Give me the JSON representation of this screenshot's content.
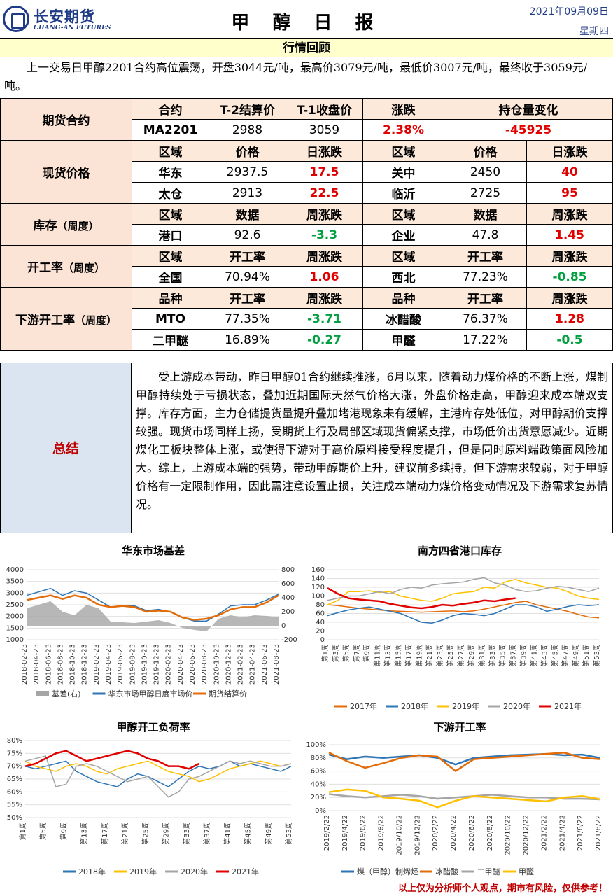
{
  "header": {
    "logo_cn": "长安期货",
    "logo_en": "CHANG-AN FUTURES",
    "title": "甲 醇 日 报",
    "date": "2021年09月09日",
    "weekday": "星期四"
  },
  "review": {
    "heading": "行情回顾",
    "text": "上一交易日甲醇2201合约高位震荡，开盘3044元/吨，最高价3079元/吨，最低价3007元/吨，最终收于3059元/吨。"
  },
  "futures": {
    "section": "期货合约",
    "headers": [
      "合约",
      "T-2结算价",
      "T-1收盘价",
      "涨跌",
      "持仓量变化"
    ],
    "row": [
      "MA2201",
      "2988",
      "3059",
      "2.38%",
      "-45925"
    ]
  },
  "spot": {
    "section": "现货价格",
    "headers": [
      "区域",
      "价格",
      "日涨跌",
      "区域",
      "价格",
      "日涨跌"
    ],
    "rows": [
      [
        "华东",
        "2937.5",
        "17.5",
        "关中",
        "2450",
        "40"
      ],
      [
        "太仓",
        "2913",
        "22.5",
        "临沂",
        "2725",
        "95"
      ]
    ]
  },
  "inventory": {
    "section": "库存",
    "section_note": "（周度）",
    "headers": [
      "区域",
      "数据",
      "周涨跌",
      "区域",
      "数据",
      "周涨跌"
    ],
    "row": [
      "港口",
      "92.6",
      "-3.3",
      "企业",
      "47.8",
      "1.45"
    ]
  },
  "operating": {
    "section": "开工率",
    "section_note": "（周度）",
    "headers": [
      "区域",
      "开工率",
      "周涨跌",
      "区域",
      "开工率",
      "周涨跌"
    ],
    "row": [
      "全国",
      "70.94%",
      "1.06",
      "西北",
      "77.23%",
      "-0.85"
    ]
  },
  "downstream": {
    "section": "下游开工率",
    "section_note": "（周度）",
    "headers": [
      "品种",
      "开工率",
      "周涨跌",
      "品种",
      "开工率",
      "周涨跌"
    ],
    "rows": [
      [
        "MTO",
        "77.35%",
        "-3.71",
        "冰醋酸",
        "76.37%",
        "1.28"
      ],
      [
        "二甲醚",
        "16.89%",
        "-0.27",
        "甲醛",
        "17.22%",
        "-0.5"
      ]
    ]
  },
  "summary": {
    "label": "总结",
    "text": "受上游成本带动，昨日甲醇01合约继续推涨，6月以来，随着动力煤价格的不断上涨，煤制甲醇持续处于亏损状态，叠加近期国际天然气价格大涨，外盘价格走高，甲醇迎来成本端双支撑。库存方面，主力仓储提货量提升叠加堵港现象未有缓解，主港库存处低位，对甲醇期价支撑较强。现货市场同样上扬，受期货上行及局部区域现货偏紧支撑，市场低价出货意愿减少。近期煤化工板块整体上涨，或使得下游对于高价原料接受程度提升，但是同时原料端政策面风险加大。综上，上游成本端的强势，带动甲醇期价上升，建议前多续持，但下游需求较弱，对于甲醇价格有一定限制作用，因此需注意设置止损，关注成本端动力煤价格变动情况及下游需求复苏情况。"
  },
  "colors": {
    "red": "#e00000",
    "green": "#00a040",
    "blue": "#2e75b6",
    "orange": "#e36c09",
    "yellow": "#ffc000",
    "gray": "#a5a5a5",
    "navy": "#1f3b86"
  },
  "chart_data": [
    {
      "type": "line",
      "title": "华东市场基差",
      "x": [
        "2018-02-23",
        "2018-04-23",
        "2018-06-23",
        "2018-08-23",
        "2018-10-23",
        "2018-12-23",
        "2019-02-23",
        "2019-04-23",
        "2019-06-23",
        "2019-08-23",
        "2019-10-23",
        "2019-12-23",
        "2020-02-23",
        "2020-04-23",
        "2020-06-23",
        "2020-08-23",
        "2020-10-23",
        "2020-12-23",
        "2021-02-23",
        "2021-04-23",
        "2021-06-23",
        "2021-08-23"
      ],
      "yticks": [
        "1000",
        "1500",
        "2000",
        "2500",
        "3000",
        "3500",
        "4000"
      ],
      "y2ticks": [
        "-200",
        "0",
        "200",
        "400",
        "600",
        "800"
      ],
      "ylim": [
        1000,
        4000
      ],
      "y2lim": [
        -200,
        800
      ],
      "series": [
        {
          "name": "基差(右)",
          "kind": "area",
          "axis": "right",
          "values": [
            250,
            300,
            350,
            200,
            150,
            300,
            250,
            60,
            50,
            40,
            60,
            80,
            40,
            -30,
            -60,
            -80,
            100,
            150,
            120,
            150,
            140,
            120
          ]
        },
        {
          "name": "华东市场甲醇日度市场价",
          "axis": "left",
          "values": [
            2900,
            3050,
            3200,
            2900,
            3100,
            3000,
            2700,
            2400,
            2450,
            2450,
            2250,
            2300,
            2200,
            1950,
            1800,
            1800,
            2100,
            2450,
            2500,
            2500,
            2700,
            2950
          ]
        },
        {
          "name": "期货结算价",
          "axis": "left",
          "values": [
            2700,
            2800,
            2900,
            2750,
            2900,
            2800,
            2500,
            2400,
            2450,
            2400,
            2200,
            2250,
            2200,
            1950,
            1850,
            1900,
            2050,
            2300,
            2400,
            2400,
            2600,
            2900
          ]
        }
      ]
    },
    {
      "type": "line",
      "title": "南方四省港口库存",
      "x": [
        "第1周",
        "第3周",
        "第5周",
        "第7周",
        "第9周",
        "第11周",
        "第13周",
        "第15周",
        "第17周",
        "第19周",
        "第21周",
        "第23周",
        "第25周",
        "第27周",
        "第29周",
        "第31周",
        "第33周",
        "第35周",
        "第37周",
        "第39周",
        "第41周",
        "第43周",
        "第45周",
        "第47周",
        "第49周",
        "第51周",
        "第53周"
      ],
      "yticks": [
        "0",
        "20",
        "40",
        "60",
        "80",
        "100",
        "120",
        "140",
        "160"
      ],
      "ylim": [
        0,
        160
      ],
      "series": [
        {
          "name": "2017年",
          "values": [
            80,
            78,
            75,
            72,
            70,
            68,
            66,
            65,
            64,
            63,
            64,
            65,
            66,
            64,
            66,
            70,
            75,
            80,
            85,
            88,
            80,
            75,
            70,
            65,
            58,
            52,
            50
          ]
        },
        {
          "name": "2018年",
          "values": [
            55,
            62,
            68,
            72,
            75,
            70,
            65,
            60,
            50,
            40,
            38,
            45,
            55,
            60,
            58,
            55,
            60,
            70,
            80,
            80,
            75,
            65,
            70,
            76,
            80,
            78,
            80
          ]
        },
        {
          "name": "2019年",
          "values": [
            80,
            90,
            110,
            110,
            112,
            108,
            110,
            100,
            95,
            90,
            88,
            95,
            105,
            108,
            110,
            120,
            118,
            132,
            138,
            130,
            125,
            120,
            118,
            110,
            100,
            95,
            92
          ]
        },
        {
          "name": "2020年",
          "values": [
            90,
            95,
            100,
            100,
            105,
            110,
            105,
            115,
            120,
            118,
            125,
            128,
            130,
            132,
            138,
            142,
            130,
            125,
            115,
            110,
            112,
            118,
            122,
            120,
            115,
            110,
            118
          ]
        },
        {
          "name": "2021年",
          "values": [
            118,
            105,
            95,
            92,
            90,
            88,
            82,
            78,
            74,
            72,
            75,
            80,
            78,
            82,
            85,
            90,
            88,
            92,
            95,
            null,
            null,
            null,
            null,
            null,
            null,
            null,
            null
          ]
        }
      ]
    },
    {
      "type": "line",
      "title": "甲醇开工负荷率",
      "x": [
        "第1周",
        "第3周",
        "第5周",
        "第7周",
        "第9周",
        "第11周",
        "第13周",
        "第15周",
        "第17周",
        "第19周",
        "第21周",
        "第23周",
        "第25周",
        "第27周",
        "第29周",
        "第31周",
        "第33周",
        "第35周",
        "第37周",
        "第39周",
        "第41周",
        "第43周",
        "第45周",
        "第47周",
        "第49周",
        "第51周",
        "第53周"
      ],
      "yticks": [
        "50%",
        "55%",
        "60%",
        "65%",
        "70%",
        "75%",
        "80%"
      ],
      "ylim": [
        50,
        80
      ],
      "series": [
        {
          "name": "2018年",
          "values": [
            70,
            69,
            70,
            71,
            72,
            68,
            66,
            64,
            63,
            62,
            65,
            67,
            66,
            64,
            62,
            65,
            68,
            70,
            69,
            70,
            72,
            70,
            71,
            70,
            69,
            68,
            70
          ]
        },
        {
          "name": "2019年",
          "values": [
            72,
            70,
            69,
            68,
            70,
            71,
            70,
            68,
            67,
            69,
            70,
            71,
            72,
            70,
            68,
            67,
            66,
            64,
            65,
            67,
            69,
            70,
            71,
            72,
            71,
            70,
            71
          ]
        },
        {
          "name": "2020年",
          "values": [
            72,
            73,
            74,
            62,
            63,
            70,
            71,
            70,
            68,
            66,
            64,
            65,
            66,
            62,
            58,
            60,
            65,
            66,
            68,
            70,
            72,
            71,
            72,
            71,
            70,
            70,
            71
          ]
        },
        {
          "name": "2021年",
          "values": [
            70,
            71,
            73,
            75,
            76,
            74,
            72,
            73,
            74,
            75,
            76,
            75,
            73,
            72,
            70,
            70,
            69,
            71,
            null,
            null,
            null,
            null,
            null,
            null,
            null,
            null,
            null
          ]
        }
      ]
    },
    {
      "type": "line",
      "title": "下游开工率",
      "x": [
        "2019/2/22",
        "2019/4/22",
        "2019/6/22",
        "2019/8/22",
        "2019/10/22",
        "2019/12/22",
        "2020/2/22",
        "2020/4/22",
        "2020/6/22",
        "2020/8/22",
        "2020/10/22",
        "2020/12/22",
        "2021/2/22",
        "2021/4/22",
        "2021/6/22",
        "2021/8/22"
      ],
      "yticks": [
        "0%",
        "20%",
        "40%",
        "60%",
        "80%",
        "100%"
      ],
      "ylim": [
        0,
        100
      ],
      "series": [
        {
          "name": "煤（甲醇）制烯烃",
          "values": [
            85,
            78,
            82,
            80,
            82,
            84,
            80,
            70,
            80,
            82,
            84,
            85,
            86,
            84,
            85,
            80
          ]
        },
        {
          "name": "冰醋酸",
          "values": [
            88,
            75,
            65,
            72,
            80,
            84,
            82,
            60,
            78,
            80,
            82,
            84,
            86,
            88,
            80,
            78
          ]
        },
        {
          "name": "二甲醚",
          "values": [
            25,
            22,
            20,
            22,
            24,
            22,
            18,
            20,
            22,
            24,
            22,
            20,
            20,
            18,
            18,
            17
          ]
        },
        {
          "name": "甲醛",
          "values": [
            28,
            32,
            30,
            20,
            18,
            15,
            5,
            15,
            22,
            20,
            18,
            16,
            14,
            20,
            22,
            17
          ]
        }
      ]
    }
  ],
  "footer": "以上仅为分析师个人观点，期市有风险，仅供参考！"
}
